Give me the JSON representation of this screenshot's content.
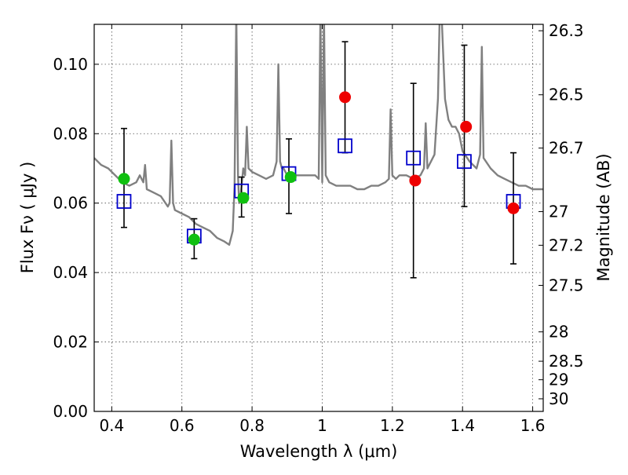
{
  "chart_data": {
    "type": "scatter",
    "xlabel": "Wavelength  λ (μm)",
    "ylabel": "Flux  Fν  ( μJy )",
    "y2label": "Magnitude (AB)",
    "xlim": [
      0.35,
      1.63
    ],
    "ylim": [
      0.0,
      0.1115
    ],
    "grid": true,
    "x_ticks": [
      0.4,
      0.6,
      0.8,
      1.0,
      1.2,
      1.4,
      1.6
    ],
    "x_tick_labels": [
      "0.4",
      "0.6",
      "0.8",
      "1",
      "1.2",
      "1.4",
      "1.6"
    ],
    "y_ticks": [
      0.0,
      0.02,
      0.04,
      0.06,
      0.08,
      0.1
    ],
    "y_tick_labels": [
      "0.00",
      "0.02",
      "0.04",
      "0.06",
      "0.08",
      "0.10"
    ],
    "y2_ticks": [
      26.3,
      26.5,
      26.7,
      27.0,
      27.2,
      27.5,
      28.0,
      28.5,
      29.0,
      30.0
    ],
    "y2_tick_labels": [
      "26.3",
      "26.5",
      "26.7",
      "27",
      "27.2",
      "27.5",
      "28",
      "28.5",
      "29",
      "30"
    ],
    "series": [
      {
        "kind": "line",
        "color": "#808080",
        "x": [
          0.35,
          0.37,
          0.39,
          0.41,
          0.43,
          0.45,
          0.47,
          0.48,
          0.49,
          0.495,
          0.5,
          0.52,
          0.54,
          0.56,
          0.565,
          0.57,
          0.575,
          0.58,
          0.6,
          0.62,
          0.64,
          0.66,
          0.68,
          0.7,
          0.72,
          0.735,
          0.74,
          0.745,
          0.75,
          0.755,
          0.76,
          0.763,
          0.767,
          0.77,
          0.775,
          0.78,
          0.785,
          0.79,
          0.8,
          0.82,
          0.84,
          0.86,
          0.87,
          0.875,
          0.88,
          0.885,
          0.89,
          0.9,
          0.92,
          0.94,
          0.96,
          0.98,
          0.99,
          0.995,
          1.0,
          1.005,
          1.01,
          1.02,
          1.04,
          1.06,
          1.08,
          1.1,
          1.12,
          1.14,
          1.16,
          1.18,
          1.19,
          1.195,
          1.2,
          1.21,
          1.22,
          1.24,
          1.26,
          1.28,
          1.29,
          1.295,
          1.3,
          1.31,
          1.32,
          1.33,
          1.335,
          1.34,
          1.35,
          1.36,
          1.37,
          1.38,
          1.39,
          1.4,
          1.42,
          1.44,
          1.45,
          1.455,
          1.46,
          1.48,
          1.5,
          1.52,
          1.54,
          1.56,
          1.58,
          1.6,
          1.62,
          1.63
        ],
        "y": [
          0.073,
          0.071,
          0.07,
          0.068,
          0.066,
          0.065,
          0.066,
          0.068,
          0.066,
          0.071,
          0.064,
          0.063,
          0.062,
          0.059,
          0.06,
          0.078,
          0.06,
          0.058,
          0.057,
          0.056,
          0.054,
          0.053,
          0.052,
          0.05,
          0.049,
          0.048,
          0.05,
          0.052,
          0.065,
          0.115,
          0.068,
          0.06,
          0.062,
          0.065,
          0.07,
          0.068,
          0.082,
          0.07,
          0.069,
          0.068,
          0.067,
          0.068,
          0.072,
          0.1,
          0.072,
          0.07,
          0.07,
          0.068,
          0.068,
          0.068,
          0.068,
          0.068,
          0.067,
          0.115,
          0.066,
          0.115,
          0.068,
          0.066,
          0.065,
          0.065,
          0.065,
          0.064,
          0.064,
          0.065,
          0.065,
          0.066,
          0.067,
          0.087,
          0.068,
          0.067,
          0.068,
          0.068,
          0.067,
          0.068,
          0.07,
          0.083,
          0.07,
          0.072,
          0.074,
          0.09,
          0.115,
          0.115,
          0.09,
          0.084,
          0.082,
          0.082,
          0.08,
          0.075,
          0.072,
          0.07,
          0.074,
          0.105,
          0.073,
          0.07,
          0.068,
          0.067,
          0.066,
          0.065,
          0.065,
          0.064,
          0.064,
          0.064
        ]
      },
      {
        "kind": "errorbar",
        "color": "#000000",
        "x": [
          0.435,
          0.635,
          0.77,
          0.905,
          1.065,
          1.26,
          1.405,
          1.545
        ],
        "y": [
          0.0605,
          0.0505,
          0.0635,
          0.0685,
          0.0765,
          0.073,
          0.072,
          0.0605
        ],
        "yerr_low": [
          0.053,
          0.044,
          0.056,
          0.057,
          0.0745,
          0.0385,
          0.059,
          0.0425
        ],
        "yerr_high": [
          0.0815,
          0.0555,
          0.0675,
          0.0785,
          0.1065,
          0.0945,
          0.1055,
          0.0745
        ]
      },
      {
        "kind": "marker-square",
        "color": "#0000cc",
        "x": [
          0.435,
          0.635,
          0.77,
          0.905,
          1.065,
          1.26,
          1.405,
          1.545
        ],
        "y": [
          0.0605,
          0.0505,
          0.0635,
          0.0685,
          0.0765,
          0.073,
          0.072,
          0.0605
        ]
      },
      {
        "kind": "marker-circle",
        "color": "#10c010",
        "x": [
          0.435,
          0.635,
          0.775,
          0.91
        ],
        "y": [
          0.067,
          0.0495,
          0.0615,
          0.0675
        ]
      },
      {
        "kind": "marker-circle",
        "color": "#ee0000",
        "x": [
          1.065,
          1.265,
          1.41,
          1.545
        ],
        "y": [
          0.0905,
          0.0665,
          0.082,
          0.0585
        ]
      }
    ]
  }
}
